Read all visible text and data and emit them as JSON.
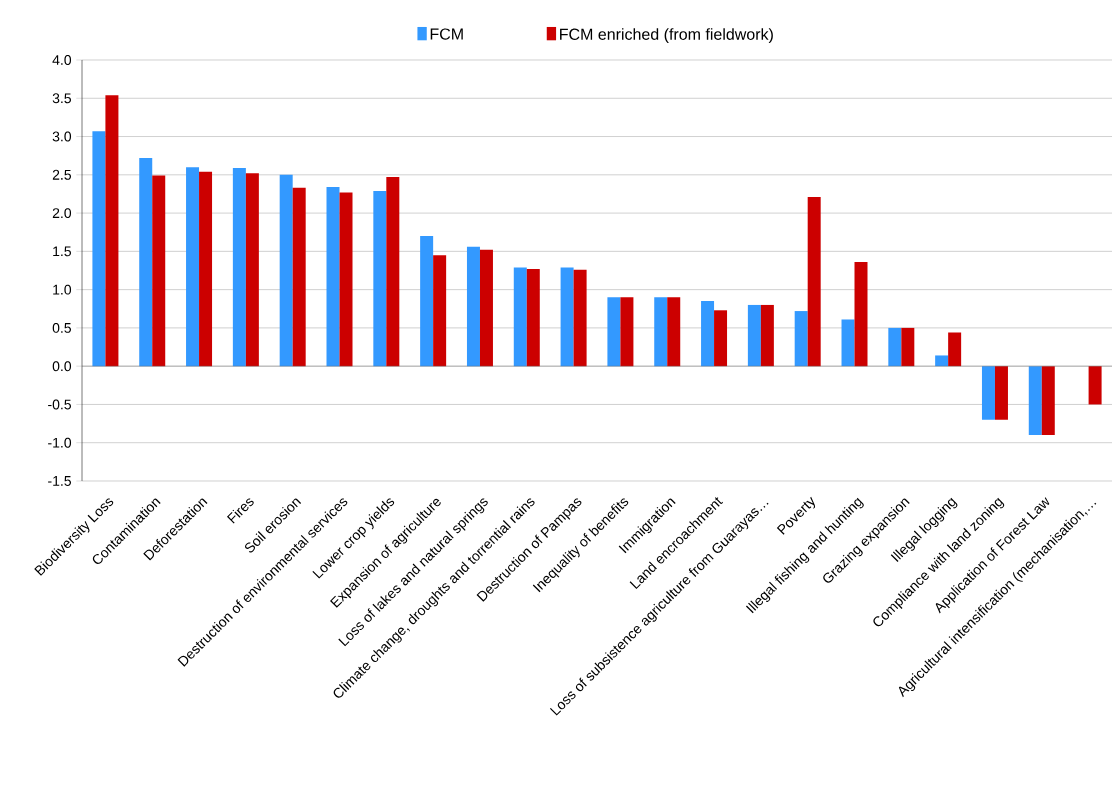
{
  "chart_data": {
    "type": "bar",
    "categories": [
      "Biodiversity Loss",
      "Contamination",
      "Deforestation",
      "Fires",
      "Soil erosion",
      "Destruction of environmental services",
      "Lower crop yields",
      "Expansion of agriculture",
      "Loss of lakes and natural springs",
      "Climate change, droughts and torrential rains",
      "Destruction of Pampas",
      "Inequality of benefits",
      "Immigration",
      "Land encroachment",
      "Loss of subsistence agriculture from Guarayas…",
      "Poverty",
      "Illegal fishing and hunting",
      "Grazing expansion",
      "Illegal logging",
      "Compliance with land zoning",
      "Application of Forest Law",
      "Agricultural intensification (mechanisation,…"
    ],
    "series": [
      {
        "name": "FCM",
        "color": "#3399ff",
        "values": [
          3.07,
          2.72,
          2.6,
          2.59,
          2.5,
          2.34,
          2.29,
          1.7,
          1.56,
          1.29,
          1.29,
          0.9,
          0.9,
          0.85,
          0.8,
          0.72,
          0.61,
          0.5,
          0.14,
          -0.7,
          -0.9,
          0
        ]
      },
      {
        "name": "FCM enriched (from fieldwork)",
        "color": "#cc0000",
        "values": [
          3.54,
          2.49,
          2.54,
          2.52,
          2.33,
          2.27,
          2.47,
          1.45,
          1.52,
          1.27,
          1.26,
          0.9,
          0.9,
          0.73,
          0.8,
          2.21,
          1.36,
          0.5,
          0.44,
          -0.7,
          -0.9,
          -0.5
        ]
      }
    ],
    "ylim": [
      -1.5,
      4.0
    ],
    "yticks": [
      {
        "value": -1.5,
        "label": "-1.5"
      },
      {
        "value": -1.0,
        "label": "-1.0"
      },
      {
        "value": -0.5,
        "label": "-0.5"
      },
      {
        "value": 0,
        "label": "0.0"
      },
      {
        "value": 0.5,
        "label": "0.5"
      },
      {
        "value": 1.0,
        "label": "1.0"
      },
      {
        "value": 1.5,
        "label": "1.5"
      },
      {
        "value": 2.0,
        "label": "2.0"
      },
      {
        "value": 2.5,
        "label": "2.5"
      },
      {
        "value": 3.0,
        "label": "3.0"
      },
      {
        "value": 3.5,
        "label": "3.5"
      },
      {
        "value": 4.0,
        "label": "4.0"
      }
    ],
    "grid": "y",
    "legend": "top"
  }
}
